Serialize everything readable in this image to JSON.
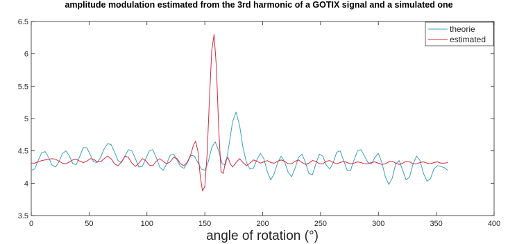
{
  "chart_data": {
    "type": "line",
    "title": "amplitude modulation estimated from the 3rd harmonic of a GOTIX signal and a simulated one",
    "xlabel": "angle of rotation (°)",
    "ylabel": "",
    "xlim": [
      0,
      400
    ],
    "ylim": [
      3.5,
      6.5
    ],
    "xticks": [
      "0",
      "50",
      "100",
      "150",
      "200",
      "250",
      "300",
      "350",
      "400"
    ],
    "yticks": [
      "3.5",
      "4",
      "4.5",
      "5",
      "5.5",
      "6",
      "6.5"
    ],
    "grid": false,
    "legend_position": "top-right",
    "series": [
      {
        "name": "theorie",
        "color": "#3a9fbf",
        "x": [
          0,
          3,
          6,
          9,
          12,
          15,
          18,
          21,
          24,
          27,
          30,
          33,
          36,
          39,
          42,
          45,
          48,
          51,
          54,
          57,
          60,
          63,
          66,
          69,
          72,
          75,
          78,
          81,
          84,
          87,
          90,
          93,
          96,
          99,
          102,
          105,
          108,
          111,
          114,
          117,
          120,
          123,
          126,
          129,
          132,
          135,
          138,
          141,
          144,
          147,
          150,
          153,
          156,
          159,
          162,
          165,
          168,
          171,
          174,
          177,
          180,
          183,
          186,
          189,
          192,
          195,
          198,
          201,
          204,
          207,
          210,
          213,
          216,
          219,
          222,
          225,
          228,
          231,
          234,
          237,
          240,
          243,
          246,
          249,
          252,
          255,
          258,
          261,
          264,
          267,
          270,
          273,
          276,
          279,
          282,
          285,
          288,
          291,
          294,
          297,
          300,
          303,
          306,
          309,
          312,
          315,
          318,
          321,
          324,
          327,
          330,
          333,
          336,
          339,
          342,
          345,
          348,
          351,
          354,
          357,
          360
        ],
        "y": [
          4.2,
          4.22,
          4.35,
          4.47,
          4.49,
          4.4,
          4.28,
          4.25,
          4.33,
          4.46,
          4.5,
          4.42,
          4.3,
          4.29,
          4.42,
          4.55,
          4.55,
          4.44,
          4.33,
          4.32,
          4.4,
          4.53,
          4.61,
          4.6,
          4.48,
          4.35,
          4.32,
          4.42,
          4.52,
          4.5,
          4.38,
          4.25,
          4.26,
          4.38,
          4.5,
          4.52,
          4.4,
          4.25,
          4.2,
          4.3,
          4.43,
          4.45,
          4.36,
          4.26,
          4.23,
          4.32,
          4.43,
          4.42,
          4.32,
          4.22,
          4.2,
          4.33,
          4.55,
          4.64,
          4.5,
          4.3,
          4.28,
          4.6,
          4.95,
          5.1,
          4.9,
          4.55,
          4.32,
          4.22,
          4.23,
          4.36,
          4.46,
          4.38,
          4.18,
          4.05,
          4.15,
          4.32,
          4.42,
          4.33,
          4.17,
          4.1,
          4.23,
          4.4,
          4.45,
          4.32,
          4.15,
          4.13,
          4.3,
          4.45,
          4.42,
          4.28,
          4.22,
          4.32,
          4.48,
          4.5,
          4.35,
          4.2,
          4.2,
          4.36,
          4.5,
          4.52,
          4.42,
          4.32,
          4.3,
          4.4,
          4.46,
          4.32,
          4.1,
          3.98,
          4.08,
          4.3,
          4.35,
          4.2,
          4.05,
          4.1,
          4.3,
          4.42,
          4.35,
          4.15,
          4.03,
          4.07,
          4.22,
          4.27,
          4.26,
          4.24,
          4.2
        ]
      },
      {
        "name": "estimated",
        "color": "#d8283a",
        "x": [
          0,
          3,
          6,
          9,
          12,
          15,
          18,
          21,
          24,
          27,
          30,
          33,
          36,
          39,
          42,
          45,
          48,
          51,
          54,
          57,
          60,
          63,
          66,
          69,
          72,
          75,
          78,
          81,
          84,
          87,
          90,
          93,
          96,
          99,
          102,
          105,
          108,
          111,
          114,
          117,
          120,
          123,
          126,
          129,
          132,
          135,
          138,
          140,
          142,
          144,
          146,
          148,
          150,
          152,
          154,
          156,
          158,
          160,
          162,
          164,
          166,
          168,
          170,
          172,
          174,
          177,
          180,
          183,
          186,
          189,
          192,
          195,
          198,
          201,
          204,
          207,
          210,
          213,
          216,
          219,
          222,
          225,
          228,
          231,
          234,
          237,
          240,
          243,
          246,
          249,
          252,
          255,
          258,
          261,
          264,
          267,
          270,
          273,
          276,
          279,
          282,
          285,
          288,
          291,
          294,
          297,
          300,
          303,
          306,
          309,
          312,
          315,
          318,
          321,
          324,
          327,
          330,
          333,
          336,
          339,
          342,
          345,
          348,
          351,
          354,
          357,
          360
        ],
        "y": [
          4.31,
          4.31,
          4.33,
          4.35,
          4.36,
          4.37,
          4.38,
          4.37,
          4.34,
          4.31,
          4.3,
          4.33,
          4.36,
          4.37,
          4.34,
          4.32,
          4.34,
          4.38,
          4.37,
          4.33,
          4.33,
          4.38,
          4.42,
          4.38,
          4.3,
          4.27,
          4.33,
          4.42,
          4.4,
          4.31,
          4.26,
          4.31,
          4.38,
          4.35,
          4.28,
          4.27,
          4.34,
          4.38,
          4.34,
          4.3,
          4.33,
          4.4,
          4.38,
          4.3,
          4.27,
          4.33,
          4.45,
          4.58,
          4.65,
          4.5,
          4.12,
          3.88,
          3.95,
          4.45,
          5.3,
          6.05,
          6.3,
          5.8,
          4.85,
          4.18,
          4.15,
          4.35,
          4.4,
          4.3,
          4.25,
          4.32,
          4.38,
          4.32,
          4.27,
          4.31,
          4.36,
          4.34,
          4.31,
          4.33,
          4.35,
          4.32,
          4.31,
          4.34,
          4.36,
          4.34,
          4.3,
          4.3,
          4.34,
          4.36,
          4.32,
          4.29,
          4.31,
          4.35,
          4.34,
          4.3,
          4.3,
          4.34,
          4.35,
          4.32,
          4.3,
          4.32,
          4.34,
          4.32,
          4.3,
          4.31,
          4.33,
          4.32,
          4.3,
          4.3,
          4.32,
          4.33,
          4.31,
          4.29,
          4.3,
          4.33,
          4.34,
          4.31,
          4.29,
          4.31,
          4.34,
          4.33,
          4.3,
          4.3,
          4.32,
          4.33,
          4.31,
          4.3,
          4.32,
          4.33,
          4.31,
          4.31,
          4.32
        ]
      }
    ]
  }
}
